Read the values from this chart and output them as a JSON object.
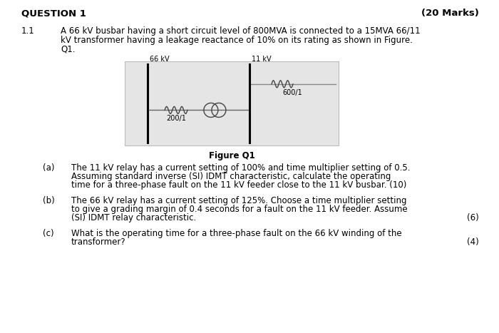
{
  "title_left": "QUESTION 1",
  "title_right": "(20 Marks)",
  "section": "1.1",
  "intro_line1": "A 66 kV busbar having a short circuit level of 800MVA is connected to a 15MVA 66/11",
  "intro_line2": "kV transformer having a leakage reactance of 10% on its rating as shown in Figure.",
  "intro_line3": "Q1.",
  "figure_caption": "Figure Q1",
  "diagram_label_left": "66 kV",
  "diagram_label_right": "11 kV",
  "diagram_label_relay1": "200/1",
  "diagram_label_relay2": "600/1",
  "qa_label": "(a)",
  "qa_line1": "The 11 kV relay has a current setting of 100% and time multiplier setting of 0.5.",
  "qa_line2": "Assuming standard inverse (SI) IDMT characteristic, calculate the operating",
  "qa_line3": "time for a three-phase fault on the 11 kV feeder close to the 11 kV busbar. (10)",
  "qb_label": "(b)",
  "qb_line1": "The 66 kV relay has a current setting of 125%. Choose a time multiplier setting",
  "qb_line2": "to give a grading margin of 0.4 seconds for a fault on the 11 kV feeder. Assume",
  "qb_line3": "(SI) IDMT relay characteristic.",
  "qb_marks": "(6)",
  "qc_label": "(c)",
  "qc_line1": "What is the operating time for a three-phase fault on the 66 kV winding of the",
  "qc_line2": "transformer?",
  "qc_marks": "(4)",
  "bg_color": "#ffffff",
  "diagram_bg": "#e5e5e5",
  "text_color": "#000000",
  "font_size_title": 9.5,
  "font_size_body": 8.5,
  "font_size_diagram": 7.0
}
